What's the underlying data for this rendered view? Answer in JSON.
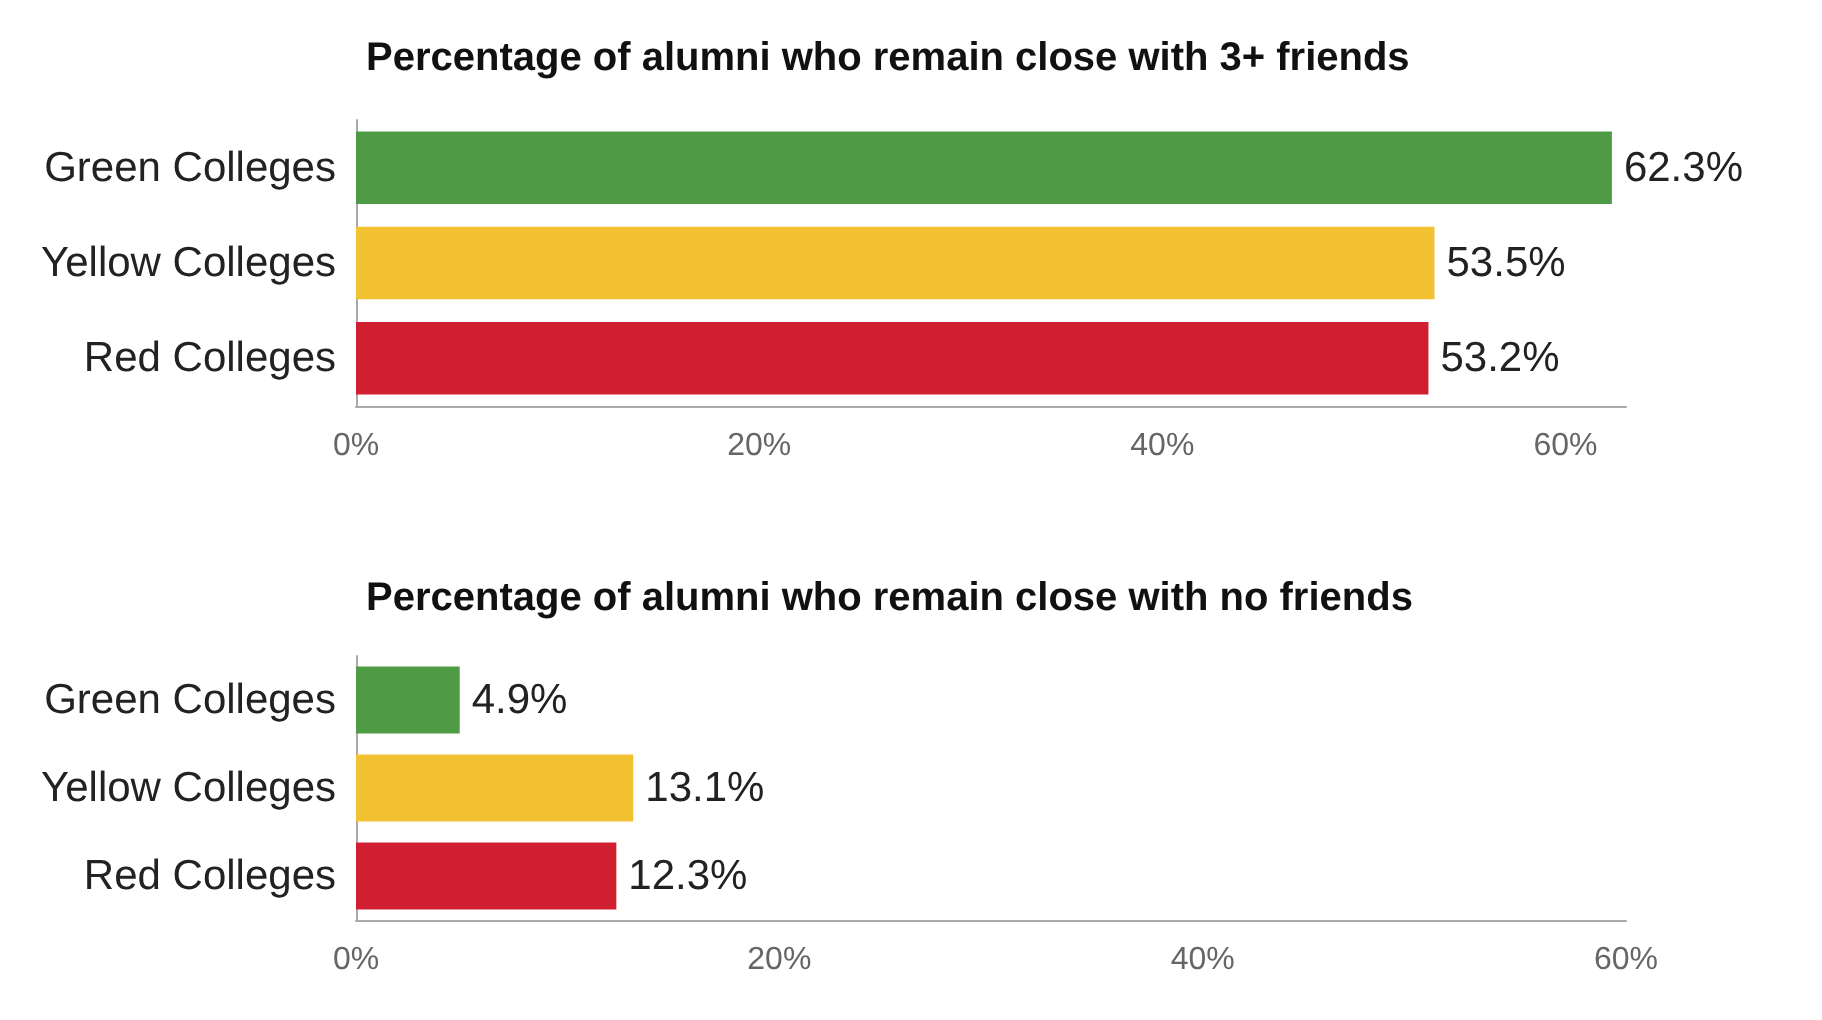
{
  "chart_data": [
    {
      "type": "bar",
      "orientation": "horizontal",
      "title": "Percentage of alumni who remain close with 3+ friends",
      "categories": [
        "Green Colleges",
        "Yellow Colleges",
        "Red Colleges"
      ],
      "values": [
        62.3,
        53.5,
        53.2
      ],
      "colors": [
        "#4f9a45",
        "#f2c232",
        "#d01f30"
      ],
      "value_labels": [
        "62.3%",
        "53.5%",
        "53.2%"
      ],
      "xlim": [
        0,
        63
      ],
      "xticks": [
        {
          "value": 0,
          "label": "0%"
        },
        {
          "value": 20,
          "label": "20%"
        },
        {
          "value": 40,
          "label": "40%"
        },
        {
          "value": 60,
          "label": "60%"
        }
      ],
      "grid": false
    },
    {
      "type": "bar",
      "orientation": "horizontal",
      "title": "Percentage of alumni who remain close with no friends",
      "categories": [
        "Green Colleges",
        "Yellow Colleges",
        "Red Colleges"
      ],
      "values": [
        4.9,
        13.1,
        12.3
      ],
      "colors": [
        "#4f9a45",
        "#f2c232",
        "#d01f30"
      ],
      "value_labels": [
        "4.9%",
        "13.1%",
        "12.3%"
      ],
      "xlim": [
        0,
        60
      ],
      "xticks": [
        {
          "value": 0,
          "label": "0%"
        },
        {
          "value": 20,
          "label": "20%"
        },
        {
          "value": 40,
          "label": "40%"
        },
        {
          "value": 60,
          "label": "60%"
        }
      ],
      "grid": false
    }
  ]
}
